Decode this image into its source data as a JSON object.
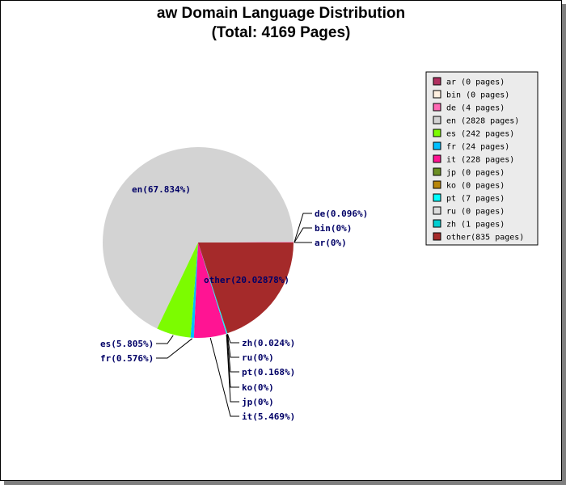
{
  "chart_data": {
    "type": "pie",
    "title": "aw Domain Language Distribution",
    "subtitle": "(Total: 4169 Pages)",
    "slices": [
      {
        "key": "ar",
        "pages": 0,
        "label": "ar(0%)",
        "legend": "ar   (0 pages)",
        "color": "#b03060"
      },
      {
        "key": "bin",
        "pages": 0,
        "label": "bin(0%)",
        "legend": "bin  (0 pages)",
        "color": "#fff0e0"
      },
      {
        "key": "de",
        "pages": 4,
        "label": "de(0.096%)",
        "legend": "de   (4 pages)",
        "color": "#ff69b4"
      },
      {
        "key": "en",
        "pages": 2828,
        "label": "en(67.834%)",
        "legend": "en   (2828 pages)",
        "color": "#d3d3d3"
      },
      {
        "key": "es",
        "pages": 242,
        "label": "es(5.805%)",
        "legend": "es   (242 pages)",
        "color": "#7cfc00"
      },
      {
        "key": "fr",
        "pages": 24,
        "label": "fr(0.576%)",
        "legend": "fr   (24 pages)",
        "color": "#00bfff"
      },
      {
        "key": "it",
        "pages": 228,
        "label": "it(5.469%)",
        "legend": "it   (228 pages)",
        "color": "#ff1493"
      },
      {
        "key": "jp",
        "pages": 0,
        "label": "jp(0%)",
        "legend": "jp   (0 pages)",
        "color": "#6b8e23"
      },
      {
        "key": "ko",
        "pages": 0,
        "label": "ko(0%)",
        "legend": "ko   (0 pages)",
        "color": "#b8860b"
      },
      {
        "key": "pt",
        "pages": 7,
        "label": "pt(0.168%)",
        "legend": "pt   (7 pages)",
        "color": "#00ffff"
      },
      {
        "key": "ru",
        "pages": 0,
        "label": "ru(0%)",
        "legend": "ru   (0 pages)",
        "color": "#dcdcdc"
      },
      {
        "key": "zh",
        "pages": 1,
        "label": "zh(0.024%)",
        "legend": "zh   (1 pages)",
        "color": "#00ced1"
      },
      {
        "key": "other",
        "pages": 835,
        "label": "other(20.02878%)",
        "legend": "other(835 pages)",
        "color": "#a52a2a"
      }
    ],
    "total": 4169
  }
}
